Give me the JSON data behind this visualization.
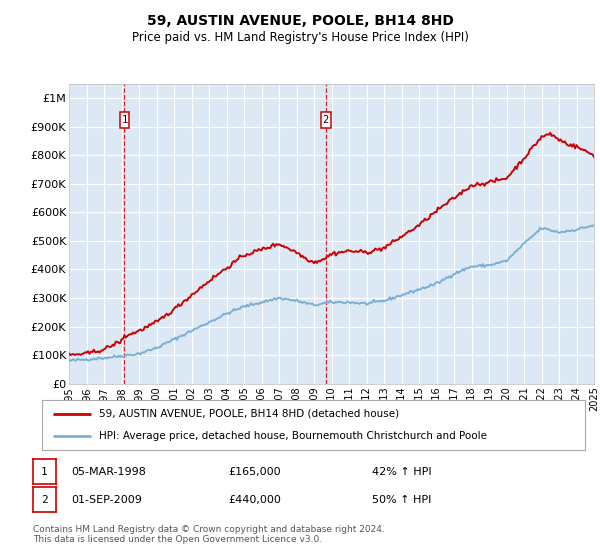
{
  "title": "59, AUSTIN AVENUE, POOLE, BH14 8HD",
  "subtitle": "Price paid vs. HM Land Registry's House Price Index (HPI)",
  "ylim": [
    0,
    1050000
  ],
  "yticks": [
    0,
    100000,
    200000,
    300000,
    400000,
    500000,
    600000,
    700000,
    800000,
    900000,
    1000000
  ],
  "ytick_labels": [
    "£0",
    "£100K",
    "£200K",
    "£300K",
    "£400K",
    "£500K",
    "£600K",
    "£700K",
    "£800K",
    "£900K",
    "£1M"
  ],
  "xmin_year": 1995,
  "xmax_year": 2025,
  "xtick_years": [
    1995,
    1996,
    1997,
    1998,
    1999,
    2000,
    2001,
    2002,
    2003,
    2004,
    2005,
    2006,
    2007,
    2008,
    2009,
    2010,
    2011,
    2012,
    2013,
    2014,
    2015,
    2016,
    2017,
    2018,
    2019,
    2020,
    2021,
    2022,
    2023,
    2024,
    2025
  ],
  "sale1_year": 1998.17,
  "sale1_price": 165000,
  "sale1_label": "1",
  "sale2_year": 2009.67,
  "sale2_price": 440000,
  "sale2_label": "2",
  "legend_line1": "59, AUSTIN AVENUE, POOLE, BH14 8HD (detached house)",
  "legend_line2": "HPI: Average price, detached house, Bournemouth Christchurch and Poole",
  "note1_label": "1",
  "note1_date": "05-MAR-1998",
  "note1_price": "£165,000",
  "note1_hpi": "42% ↑ HPI",
  "note2_label": "2",
  "note2_date": "01-SEP-2009",
  "note2_price": "£440,000",
  "note2_hpi": "50% ↑ HPI",
  "footer": "Contains HM Land Registry data © Crown copyright and database right 2024.\nThis data is licensed under the Open Government Licence v3.0.",
  "property_color": "#cc0000",
  "hpi_color": "#7aafd4",
  "bg_color": "#dce9f5",
  "grid_color": "#ffffff",
  "sale_marker_color": "#cc0000",
  "dashed_line_color": "#cc0000",
  "hpi_keypoints_x": [
    1995,
    1997,
    1998,
    1999,
    2000,
    2001,
    2002,
    2003,
    2004,
    2005,
    2006,
    2007,
    2008,
    2009,
    2010,
    2011,
    2012,
    2013,
    2014,
    2015,
    2016,
    2017,
    2018,
    2019,
    2020,
    2021,
    2022,
    2023,
    2024,
    2025
  ],
  "hpi_keypoints_y": [
    80000,
    90000,
    97000,
    105000,
    125000,
    155000,
    185000,
    215000,
    245000,
    270000,
    285000,
    300000,
    290000,
    275000,
    285000,
    285000,
    280000,
    290000,
    310000,
    330000,
    350000,
    385000,
    410000,
    415000,
    430000,
    490000,
    545000,
    530000,
    540000,
    555000
  ],
  "prop_keypoints_x": [
    1995,
    1996,
    1997,
    1998.0,
    1998.17,
    1999,
    2000,
    2001,
    2002,
    2003,
    2004,
    2005,
    2006,
    2007,
    2008.0,
    2008.5,
    2009.0,
    2009.67,
    2010,
    2011,
    2012,
    2013,
    2014,
    2015,
    2016,
    2017,
    2018,
    2019,
    2020,
    2021,
    2022,
    2022.5,
    2023,
    2023.5,
    2024,
    2025
  ],
  "prop_keypoints_y": [
    100000,
    105000,
    120000,
    150000,
    165000,
    185000,
    215000,
    260000,
    310000,
    360000,
    405000,
    450000,
    470000,
    490000,
    460000,
    440000,
    425000,
    440000,
    455000,
    465000,
    460000,
    475000,
    515000,
    555000,
    605000,
    650000,
    695000,
    705000,
    720000,
    790000,
    865000,
    875000,
    855000,
    840000,
    830000,
    800000
  ]
}
